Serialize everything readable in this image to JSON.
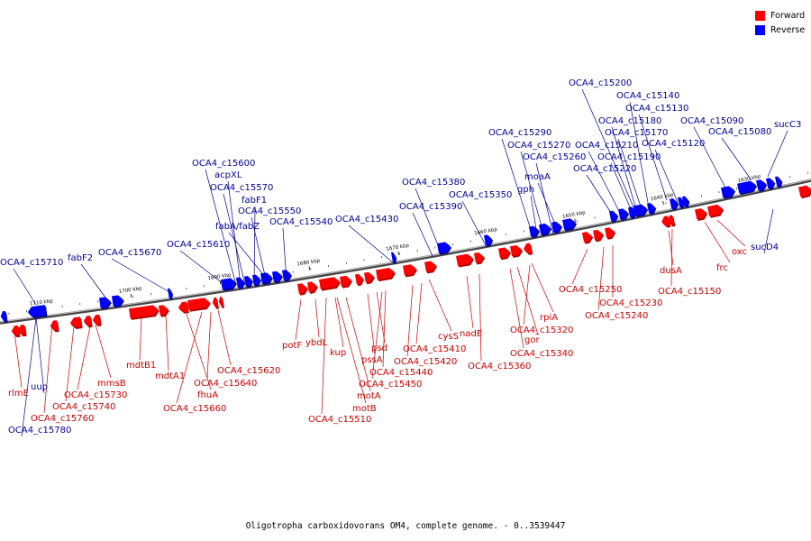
{
  "caption": "Oligotropha carboxidovorans OM4, complete genome. - 0..3539447",
  "legend": [
    {
      "label": "Forward",
      "color": "#ff0000"
    },
    {
      "label": "Reverse",
      "color": "#0000ff"
    }
  ],
  "colors": {
    "forward": "#ff0000",
    "forward_dark": "#b00000",
    "reverse": "#0000ff",
    "reverse_dark": "#00009a",
    "backbone": "#7a7a7a",
    "forward_label": "#cc0000",
    "reverse_label": "#000099"
  },
  "ticks": [
    "1710 kbp",
    "1700 kbp",
    "1690 kbp",
    "1680 kbp",
    "1670 kbp",
    "1660 kbp",
    "1650 kbp",
    "1640 kbp",
    "1630 kbp"
  ],
  "forward_labels": [
    "rlmE",
    "OCA4_c15760",
    "OCA4_c15740",
    "OCA4_c15730",
    "mmsB",
    "mdtB1",
    "mdtA1",
    "fhuA",
    "OCA4_c15660",
    "OCA4_c15640",
    "OCA4_c15620",
    "potF",
    "ybdL",
    "kup",
    "motA",
    "motB",
    "OCA4_c15510",
    "pssA",
    "psd",
    "OCA4_c15450",
    "OCA4_c15440",
    "OCA4_c15420",
    "OCA4_c15410",
    "cysS",
    "nadE",
    "OCA4_c15360",
    "OCA4_c15340",
    "gor",
    "OCA4_c15320",
    "rpiA",
    "OCA4_c15250",
    "OCA4_c15230",
    "OCA4_c15240",
    "dusA",
    "OCA4_c15150",
    "frc",
    "oxc"
  ],
  "reverse_labels": [
    "OCA4_c15710",
    "uup",
    "OCA4_c15780",
    "fabF2",
    "OCA4_c15670",
    "OCA4_c15610",
    "OCA4_c15600",
    "acpXL",
    "OCA4_c15570",
    "fabF1",
    "OCA4_c15550",
    "fabA/fabZ",
    "OCA4_c15540",
    "OCA4_c15430",
    "OCA4_c15380",
    "OCA4_c15390",
    "OCA4_c15350",
    "OCA4_c15290",
    "OCA4_c15270",
    "OCA4_c15260",
    "moaA",
    "gph",
    "OCA4_c15200",
    "OCA4_c15140",
    "OCA4_c15130",
    "OCA4_c15180",
    "OCA4_c15170",
    "OCA4_c15210",
    "OCA4_c15190",
    "OCA4_c15220",
    "OCA4_c15120",
    "OCA4_c15090",
    "OCA4_c15080",
    "sucC3",
    "sucD4"
  ]
}
